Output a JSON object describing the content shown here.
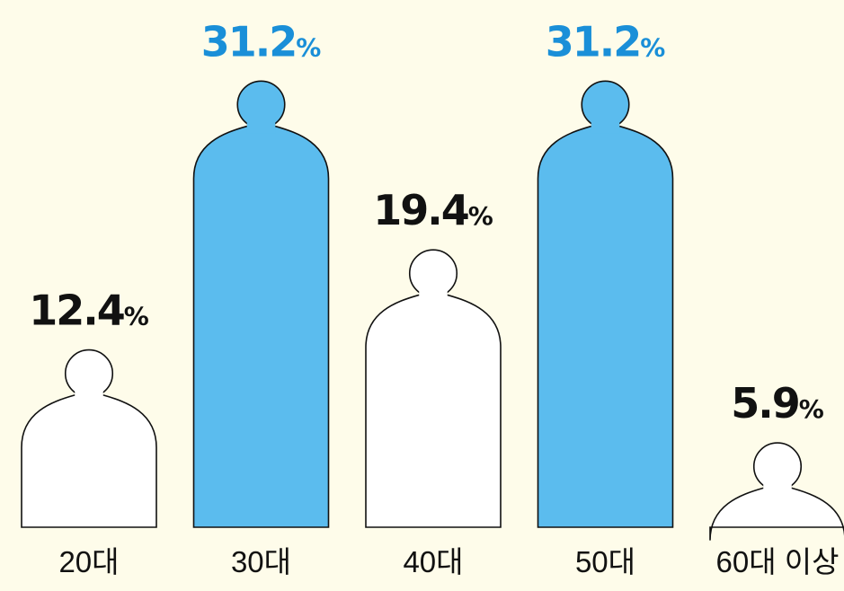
{
  "chart_data": {
    "type": "bar",
    "categories": [
      "20대",
      "30대",
      "40대",
      "50대",
      "60대 이상"
    ],
    "values": [
      12.4,
      31.2,
      19.4,
      31.2,
      5.9
    ],
    "value_labels": [
      "12.4",
      "31.2",
      "19.4",
      "31.2",
      "5.9"
    ],
    "unit": "%",
    "highlighted": [
      false,
      true,
      false,
      true,
      false
    ],
    "bar_style": "person-silhouette",
    "title": "",
    "xlabel": "",
    "ylabel": "",
    "grid": false,
    "legend": "none"
  },
  "colors": {
    "background": "#fefcea",
    "figure_default": "#ffffff",
    "figure_highlight": "#5bbcee",
    "outline": "#111111",
    "label_default": "#111111",
    "label_highlight": "#1a8fd8"
  }
}
